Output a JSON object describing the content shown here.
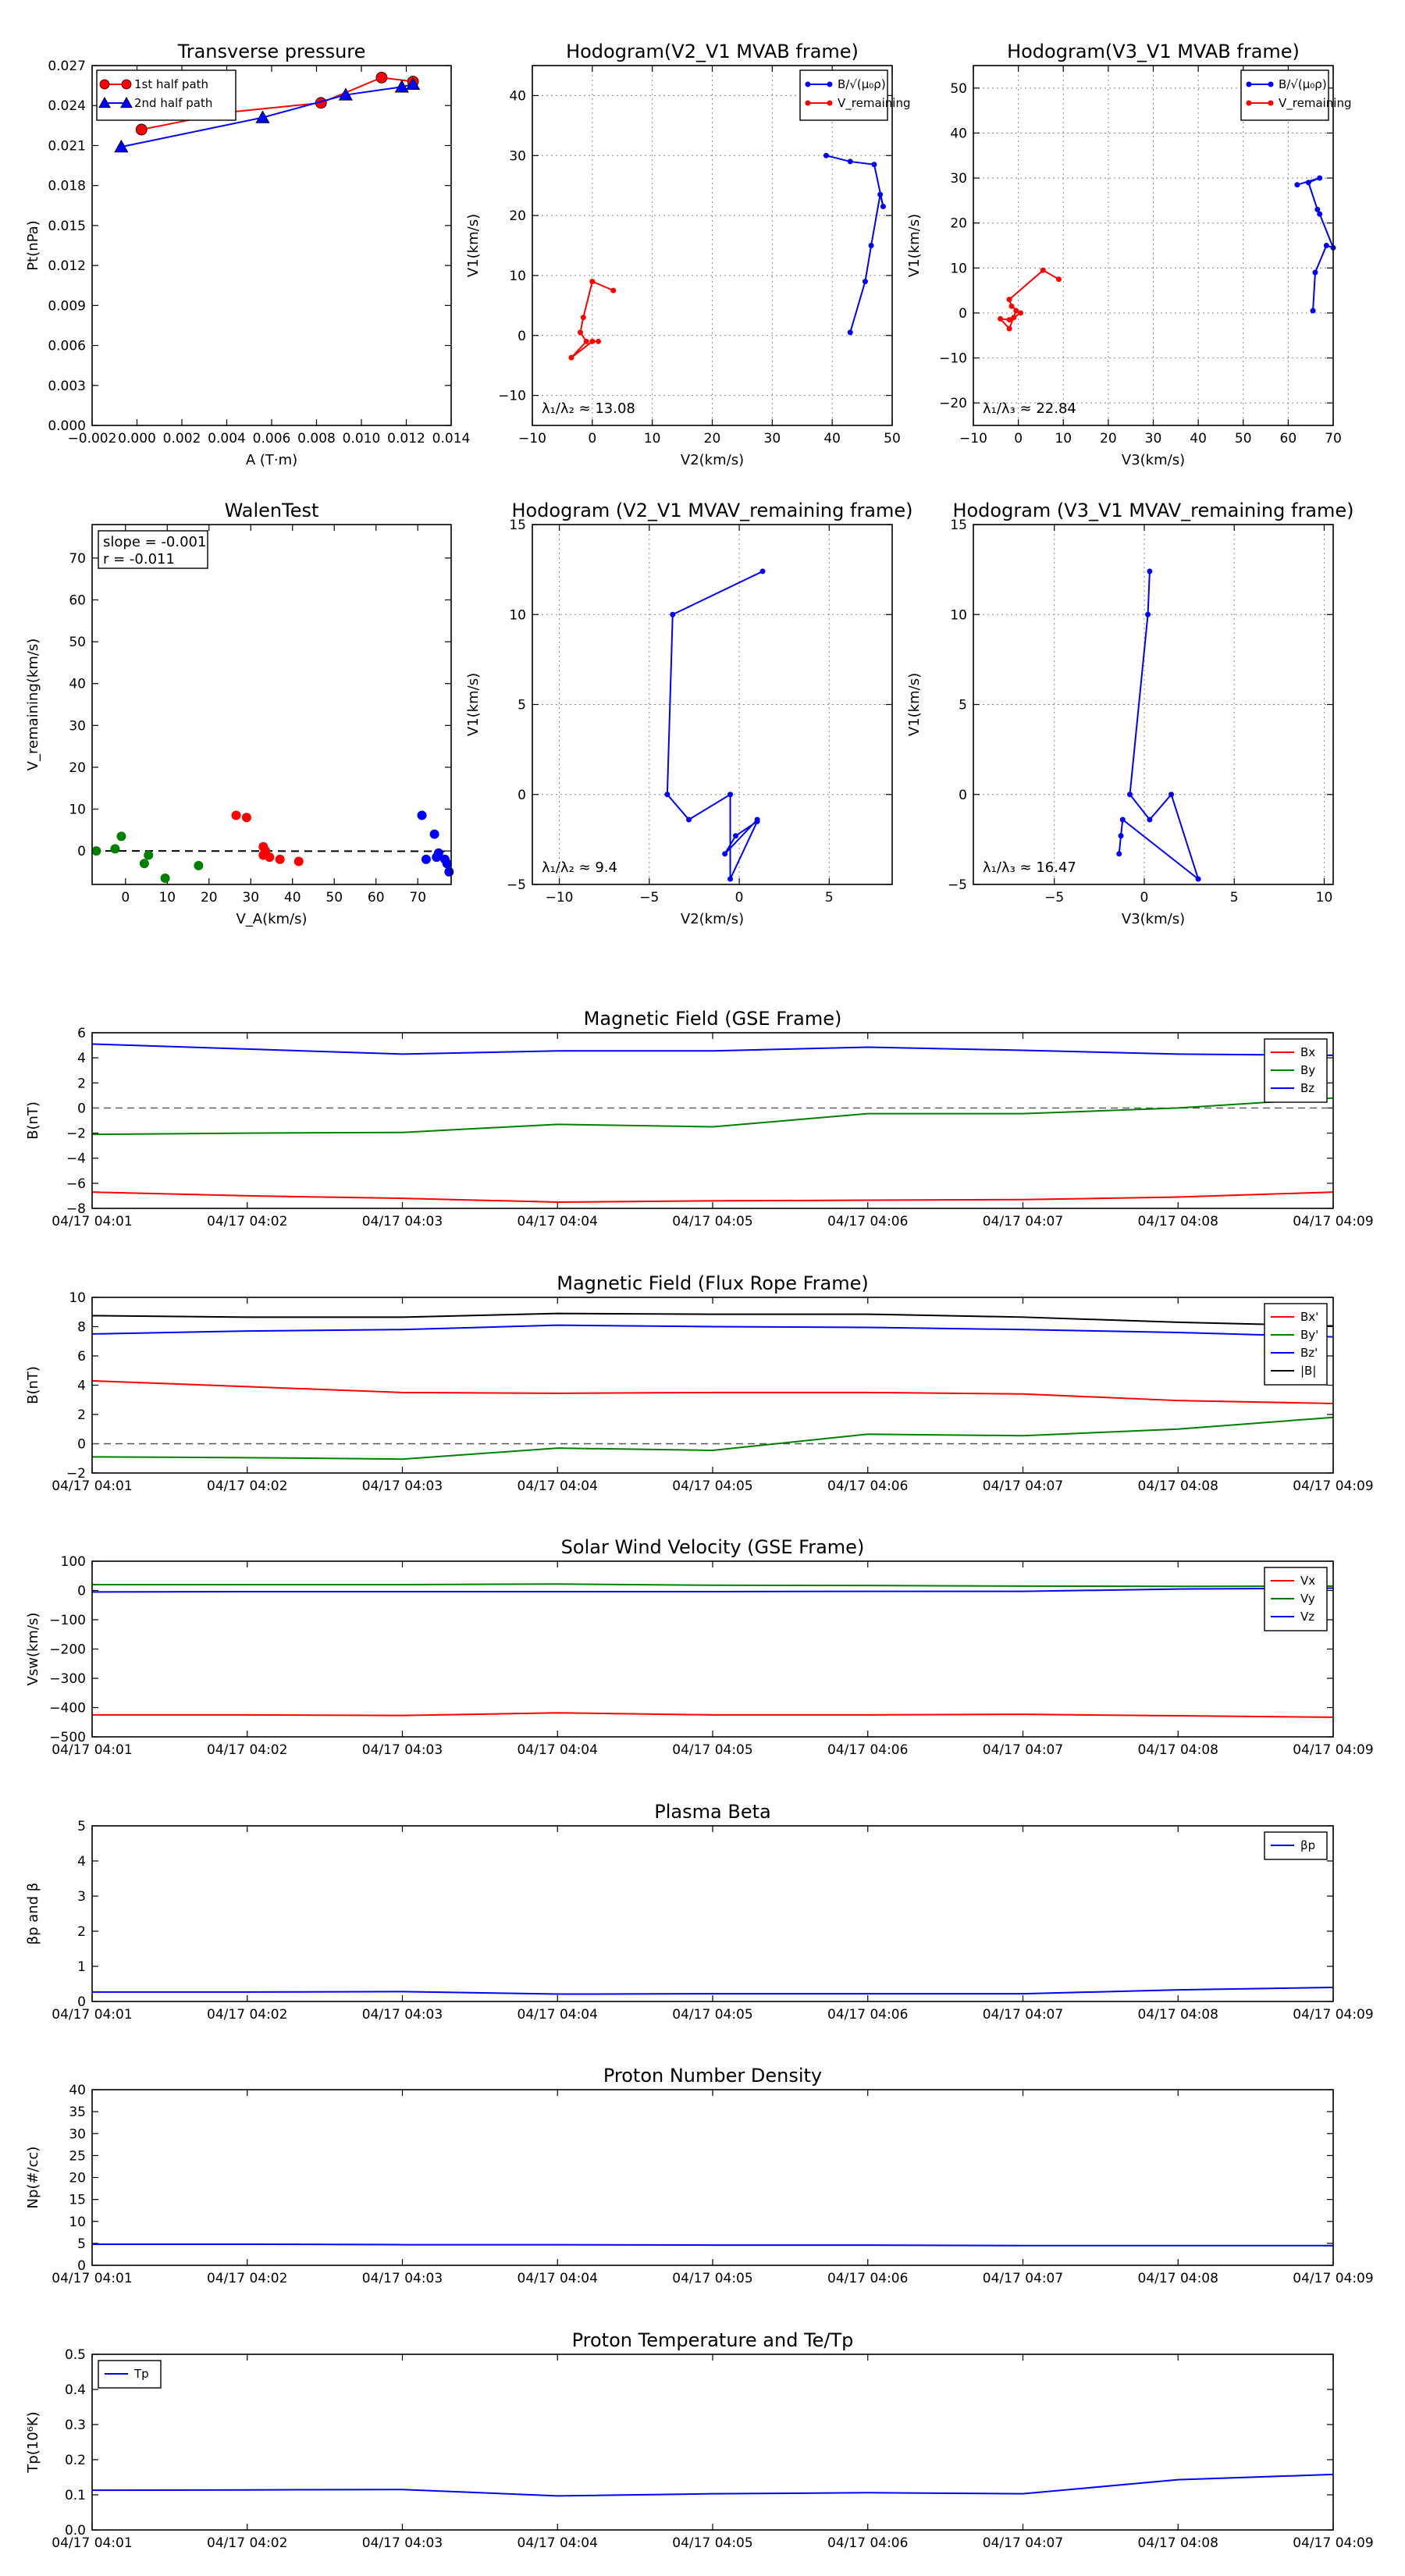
{
  "chart_data": [
    {
      "id": "tp",
      "type": "line",
      "title": "Transverse pressure",
      "xlabel": "A (T·m)",
      "ylabel": "Pt(nPa)",
      "xlim": [
        -0.002,
        0.014
      ],
      "ylim": [
        0.0,
        0.027
      ],
      "xticks": [
        "−0.002",
        "0.000",
        "0.002",
        "0.004",
        "0.006",
        "0.008",
        "0.010",
        "0.012",
        "0.014"
      ],
      "yticks": [
        "0.000",
        "0.003",
        "0.006",
        "0.009",
        "0.012",
        "0.015",
        "0.018",
        "0.021",
        "0.024",
        "0.027"
      ],
      "legend": "upper-left",
      "series": [
        {
          "name": "1st half path",
          "color": "#ff0000",
          "marker": "circle",
          "points": [
            [
              0.0002,
              0.0222
            ],
            [
              0.0041,
              0.0235
            ],
            [
              0.0082,
              0.0242
            ],
            [
              0.0109,
              0.0261
            ],
            [
              0.0123,
              0.0258
            ]
          ]
        },
        {
          "name": "2nd half path",
          "color": "#0000ff",
          "marker": "triangle",
          "points": [
            [
              -0.0007,
              0.0209
            ],
            [
              0.0056,
              0.0231
            ],
            [
              0.0093,
              0.0248
            ],
            [
              0.0118,
              0.0254
            ],
            [
              0.0123,
              0.0256
            ]
          ]
        }
      ]
    },
    {
      "id": "hodo1",
      "type": "line",
      "title": "Hodogram(V2_V1 MVAB frame)",
      "xlabel": "V2(km/s)",
      "ylabel": "V1(km/s)",
      "xlim": [
        -10,
        50
      ],
      "ylim": [
        -15,
        45
      ],
      "xticks": [
        "−10",
        "0",
        "10",
        "20",
        "30",
        "40",
        "50"
      ],
      "yticks": [
        "−10",
        "0",
        "10",
        "20",
        "30",
        "40"
      ],
      "grid": true,
      "legend": "upper-right",
      "annotation": "λ₁/λ₂ ≈ 13.08",
      "series": [
        {
          "name": "B/√(μ₀ρ)",
          "color": "#0000ff",
          "points": [
            [
              43,
              0.5
            ],
            [
              45.5,
              9
            ],
            [
              46.5,
              15
            ],
            [
              48,
              23.5
            ],
            [
              48.5,
              21.5
            ],
            [
              47,
              28.5
            ],
            [
              43,
              29
            ],
            [
              39,
              30
            ]
          ]
        },
        {
          "name": "V_remaining",
          "color": "#ff0000",
          "points": [
            [
              3.5,
              7.5
            ],
            [
              0,
              9
            ],
            [
              -1.5,
              3
            ],
            [
              -2,
              0.5
            ],
            [
              -1,
              -1
            ],
            [
              -3.5,
              -3.7
            ],
            [
              0,
              -1
            ],
            [
              1,
              -1
            ]
          ]
        }
      ]
    },
    {
      "id": "hodo2",
      "type": "line",
      "title": "Hodogram(V3_V1 MVAB frame)",
      "xlabel": "V3(km/s)",
      "ylabel": "V1(km/s)",
      "xlim": [
        -10,
        70
      ],
      "ylim": [
        -25,
        55
      ],
      "xticks": [
        "−10",
        "0",
        "10",
        "20",
        "30",
        "40",
        "50",
        "60",
        "70"
      ],
      "yticks": [
        "−20",
        "−10",
        "0",
        "10",
        "20",
        "30",
        "40",
        "50"
      ],
      "grid": true,
      "legend": "upper-right",
      "annotation": "λ₁/λ₃ ≈ 22.84",
      "series": [
        {
          "name": "B/√(μ₀ρ)",
          "color": "#0000ff",
          "points": [
            [
              65.5,
              0.5
            ],
            [
              66,
              9
            ],
            [
              68.5,
              15
            ],
            [
              70,
              14.5
            ],
            [
              67,
              22
            ],
            [
              66.5,
              23
            ],
            [
              64.5,
              29
            ],
            [
              67,
              30
            ],
            [
              62,
              28.5
            ]
          ]
        },
        {
          "name": "V_remaining",
          "color": "#ff0000",
          "points": [
            [
              9,
              7.5
            ],
            [
              5.5,
              9.5
            ],
            [
              -2,
              3
            ],
            [
              -1.5,
              1.5
            ],
            [
              0.5,
              0
            ],
            [
              -1,
              -1
            ],
            [
              -2,
              -1.5
            ],
            [
              -4,
              -1.3
            ],
            [
              -2,
              -3.5
            ],
            [
              -0.5,
              0.5
            ]
          ]
        }
      ]
    },
    {
      "id": "walen",
      "type": "scatter",
      "title": "WalenTest",
      "xlabel": "V_A(km/s)",
      "ylabel": "V_remaining(km/s)",
      "xlim": [
        -8,
        78
      ],
      "ylim": [
        -8,
        78
      ],
      "xticks": [
        "0",
        "10",
        "20",
        "30",
        "40",
        "50",
        "60",
        "70"
      ],
      "yticks": [
        "0",
        "10",
        "20",
        "30",
        "40",
        "50",
        "60",
        "70"
      ],
      "fit_line": {
        "slope": -0.001,
        "intercept": 0.0
      },
      "stats": [
        "slope = -0.001",
        "r = -0.011"
      ],
      "groups": [
        {
          "color": "#008000",
          "points": [
            [
              -7,
              0
            ],
            [
              -2.5,
              0.5
            ],
            [
              -1,
              3.5
            ],
            [
              4.5,
              -3
            ],
            [
              5.5,
              -1
            ],
            [
              9.5,
              -6.5
            ],
            [
              17.5,
              -3.5
            ]
          ]
        },
        {
          "color": "#ff0000",
          "points": [
            [
              26.5,
              8.5
            ],
            [
              29,
              8
            ],
            [
              33,
              -1
            ],
            [
              33.5,
              0
            ],
            [
              33,
              1
            ],
            [
              34.5,
              -1.5
            ],
            [
              37,
              -2
            ],
            [
              41.5,
              -2.5
            ]
          ]
        },
        {
          "color": "#0000ff",
          "points": [
            [
              71,
              8.5
            ],
            [
              72,
              -2
            ],
            [
              74,
              4
            ],
            [
              75,
              -0.5
            ],
            [
              74.5,
              -1.5
            ],
            [
              76.5,
              -2
            ],
            [
              77,
              -3
            ],
            [
              77.5,
              -5
            ]
          ]
        }
      ]
    },
    {
      "id": "hodo3",
      "type": "line",
      "title": "Hodogram (V2_V1 MVAV_remaining frame)",
      "xlabel": "V2(km/s)",
      "ylabel": "V1(km/s)",
      "xlim": [
        -11.5,
        8.5
      ],
      "ylim": [
        -5,
        15
      ],
      "xticks": [
        "−10",
        "−5",
        "0",
        "5"
      ],
      "yticks": [
        "−5",
        "0",
        "5",
        "10",
        "15"
      ],
      "grid": true,
      "annotation": "λ₁/λ₂ ≈ 9.4",
      "series": [
        {
          "name": "",
          "color": "#0000ff",
          "points": [
            [
              1.3,
              12.4
            ],
            [
              -3.7,
              10
            ],
            [
              -4,
              0
            ],
            [
              -2.8,
              -1.4
            ],
            [
              -0.5,
              0
            ],
            [
              -0.5,
              -4.7
            ],
            [
              1,
              -1.5
            ],
            [
              -0.2,
              -2.3
            ],
            [
              -0.8,
              -3.3
            ],
            [
              1,
              -1.4
            ]
          ]
        }
      ]
    },
    {
      "id": "hodo4",
      "type": "line",
      "title": "Hodogram (V3_V1 MVAV_remaining frame)",
      "xlabel": "V3(km/s)",
      "ylabel": "V1(km/s)",
      "xlim": [
        -9.5,
        10.5
      ],
      "ylim": [
        -5,
        15
      ],
      "xticks": [
        "−5",
        "0",
        "5",
        "10"
      ],
      "yticks": [
        "−5",
        "0",
        "5",
        "10",
        "15"
      ],
      "grid": true,
      "annotation": "λ₁/λ₃ ≈ 16.47",
      "series": [
        {
          "name": "",
          "color": "#0000ff",
          "points": [
            [
              0.3,
              12.4
            ],
            [
              0.2,
              10
            ],
            [
              -0.8,
              0
            ],
            [
              0.3,
              -1.4
            ],
            [
              1.5,
              0
            ],
            [
              3,
              -4.7
            ],
            [
              -1.2,
              -1.4
            ],
            [
              -1.3,
              -2.3
            ],
            [
              -1.4,
              -3.3
            ]
          ]
        }
      ]
    },
    {
      "id": "bgse",
      "type": "line",
      "title": "Magnetic Field (GSE Frame)",
      "ylabel": "B(nT)",
      "x": [
        "04/17 04:01",
        "04/17 04:02",
        "04/17 04:03",
        "04/17 04:04",
        "04/17 04:05",
        "04/17 04:06",
        "04/17 04:07",
        "04/17 04:08",
        "04/17 04:09"
      ],
      "ylim": [
        -8,
        6
      ],
      "yticks": [
        "−8",
        "−6",
        "−4",
        "−2",
        "0",
        "2",
        "4",
        "6"
      ],
      "zero_line": true,
      "legend": "upper-right",
      "series": [
        {
          "name": "Bx",
          "color": "#ff0000",
          "values": [
            -6.7,
            -7.0,
            -7.2,
            -7.5,
            -7.4,
            -7.35,
            -7.3,
            -7.1,
            -6.7
          ]
        },
        {
          "name": "By",
          "color": "#008000",
          "values": [
            -2.1,
            -2.0,
            -1.95,
            -1.3,
            -1.5,
            -0.45,
            -0.45,
            0.0,
            0.8
          ]
        },
        {
          "name": "Bz",
          "color": "#0000ff",
          "values": [
            5.1,
            4.7,
            4.3,
            4.55,
            4.55,
            4.85,
            4.6,
            4.3,
            4.2
          ]
        }
      ]
    },
    {
      "id": "bfr",
      "type": "line",
      "title": "Magnetic Field (Flux Rope Frame)",
      "ylabel": "B(nT)",
      "x": [
        "04/17 04:01",
        "04/17 04:02",
        "04/17 04:03",
        "04/17 04:04",
        "04/17 04:05",
        "04/17 04:06",
        "04/17 04:07",
        "04/17 04:08",
        "04/17 04:09"
      ],
      "ylim": [
        -2,
        10
      ],
      "yticks": [
        "−2",
        "0",
        "2",
        "4",
        "6",
        "8",
        "10"
      ],
      "zero_line": true,
      "legend": "upper-right",
      "series": [
        {
          "name": "Bx'",
          "color": "#ff0000",
          "values": [
            4.3,
            3.9,
            3.5,
            3.45,
            3.5,
            3.5,
            3.4,
            2.95,
            2.75
          ]
        },
        {
          "name": "By'",
          "color": "#008000",
          "values": [
            -0.9,
            -0.95,
            -1.05,
            -0.3,
            -0.45,
            0.65,
            0.55,
            1.0,
            1.8
          ]
        },
        {
          "name": "Bz'",
          "color": "#0000ff",
          "values": [
            7.5,
            7.7,
            7.8,
            8.1,
            8.0,
            7.95,
            7.8,
            7.6,
            7.3
          ]
        },
        {
          "name": "|B|",
          "color": "#000000",
          "values": [
            8.75,
            8.65,
            8.65,
            8.9,
            8.85,
            8.85,
            8.65,
            8.3,
            8.05
          ]
        }
      ]
    },
    {
      "id": "vsw",
      "type": "line",
      "title": "Solar Wind Velocity (GSE Frame)",
      "ylabel": "Vsw(km/s)",
      "x": [
        "04/17 04:01",
        "04/17 04:02",
        "04/17 04:03",
        "04/17 04:04",
        "04/17 04:05",
        "04/17 04:06",
        "04/17 04:07",
        "04/17 04:08",
        "04/17 04:09"
      ],
      "ylim": [
        -500,
        100
      ],
      "yticks": [
        "−500",
        "−400",
        "−300",
        "−200",
        "−100",
        "0",
        "100"
      ],
      "legend": "upper-right",
      "series": [
        {
          "name": "Vx",
          "color": "#ff0000",
          "values": [
            -425,
            -425,
            -427,
            -418,
            -425,
            -425,
            -423,
            -428,
            -433
          ]
        },
        {
          "name": "Vy",
          "color": "#008000",
          "values": [
            20,
            20,
            20,
            22,
            18,
            17,
            15,
            14,
            15
          ]
        },
        {
          "name": "Vz",
          "color": "#0000ff",
          "values": [
            -5,
            -4,
            -4,
            -4,
            -4,
            -3,
            -3,
            5,
            8
          ]
        }
      ]
    },
    {
      "id": "beta",
      "type": "line",
      "title": "Plasma Beta",
      "ylabel": "βp and β",
      "x": [
        "04/17 04:01",
        "04/17 04:02",
        "04/17 04:03",
        "04/17 04:04",
        "04/17 04:05",
        "04/17 04:06",
        "04/17 04:07",
        "04/17 04:08",
        "04/17 04:09"
      ],
      "ylim": [
        0,
        5
      ],
      "yticks": [
        "0",
        "1",
        "2",
        "3",
        "4",
        "5"
      ],
      "legend": "upper-right",
      "series": [
        {
          "name": "βp",
          "color": "#0000ff",
          "values": [
            0.27,
            0.27,
            0.28,
            0.21,
            0.22,
            0.22,
            0.22,
            0.33,
            0.4
          ]
        }
      ]
    },
    {
      "id": "np",
      "type": "line",
      "title": "Proton Number Density",
      "ylabel": "Np(#/cc)",
      "x": [
        "04/17 04:01",
        "04/17 04:02",
        "04/17 04:03",
        "04/17 04:04",
        "04/17 04:05",
        "04/17 04:06",
        "04/17 04:07",
        "04/17 04:08",
        "04/17 04:09"
      ],
      "ylim": [
        0,
        40
      ],
      "yticks": [
        "0",
        "5",
        "10",
        "15",
        "20",
        "25",
        "30",
        "35",
        "40"
      ],
      "series": [
        {
          "name": "",
          "color": "#0000ff",
          "values": [
            4.8,
            4.8,
            4.7,
            4.7,
            4.6,
            4.6,
            4.5,
            4.5,
            4.5
          ]
        }
      ]
    },
    {
      "id": "tpt",
      "type": "line",
      "title": "Proton Temperature and Te/Tp",
      "ylabel": "Tp(10⁶K)",
      "x": [
        "04/17 04:01",
        "04/17 04:02",
        "04/17 04:03",
        "04/17 04:04",
        "04/17 04:05",
        "04/17 04:06",
        "04/17 04:07",
        "04/17 04:08",
        "04/17 04:09"
      ],
      "ylim": [
        0,
        0.5
      ],
      "yticks": [
        "0.0",
        "0.1",
        "0.2",
        "0.3",
        "0.4",
        "0.5"
      ],
      "legend": "upper-left",
      "series": [
        {
          "name": "Tp",
          "color": "#0000ff",
          "values": [
            0.113,
            0.114,
            0.115,
            0.097,
            0.103,
            0.106,
            0.103,
            0.143,
            0.158
          ]
        }
      ]
    }
  ]
}
